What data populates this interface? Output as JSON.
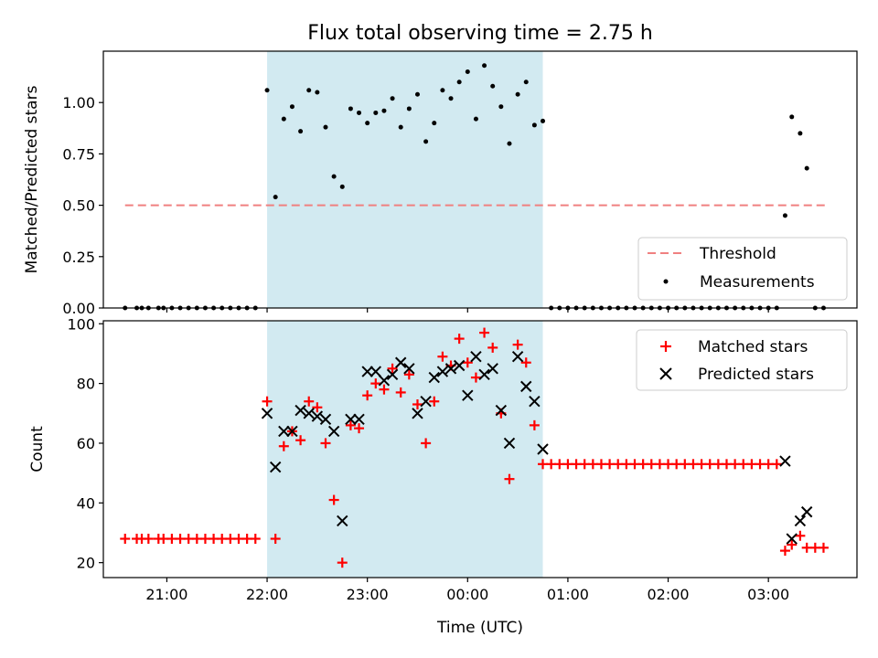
{
  "chart_data": [
    {
      "type": "scatter",
      "title": "Flux total observing time = 2.75 h",
      "xlabel": "",
      "ylabel": "Matched/Predicted stars",
      "xlim": [
        "20:22",
        "03:53"
      ],
      "ylim": [
        0,
        1.25
      ],
      "yticks": [
        "0.00",
        "0.25",
        "0.50",
        "0.75",
        "1.00"
      ],
      "shaded_interval": [
        "22:00",
        "00:45"
      ],
      "legend_position": "lower-right",
      "threshold": {
        "name": "Threshold",
        "value": 0.5,
        "x_start": "20:35",
        "x_end": "03:35",
        "color": "#f08080"
      },
      "series": [
        {
          "name": "Measurements",
          "color": "#000000",
          "points": [
            [
              "20:35",
              0
            ],
            [
              "20:42",
              0
            ],
            [
              "20:45",
              0
            ],
            [
              "20:49",
              0
            ],
            [
              "20:55",
              0
            ],
            [
              "20:58",
              0
            ],
            [
              "21:03",
              0
            ],
            [
              "21:08",
              0
            ],
            [
              "21:13",
              0
            ],
            [
              "21:18",
              0
            ],
            [
              "21:23",
              0
            ],
            [
              "21:28",
              0
            ],
            [
              "21:33",
              0
            ],
            [
              "21:38",
              0
            ],
            [
              "21:43",
              0
            ],
            [
              "21:48",
              0
            ],
            [
              "21:53",
              0
            ],
            [
              "22:00",
              1.06
            ],
            [
              "22:05",
              0.54
            ],
            [
              "22:10",
              0.92
            ],
            [
              "22:15",
              0.98
            ],
            [
              "22:20",
              0.86
            ],
            [
              "22:25",
              1.06
            ],
            [
              "22:30",
              1.05
            ],
            [
              "22:35",
              0.88
            ],
            [
              "22:40",
              0.64
            ],
            [
              "22:45",
              0.59
            ],
            [
              "22:50",
              0.97
            ],
            [
              "22:55",
              0.95
            ],
            [
              "23:00",
              0.9
            ],
            [
              "23:05",
              0.95
            ],
            [
              "23:10",
              0.96
            ],
            [
              "23:15",
              1.02
            ],
            [
              "23:20",
              0.88
            ],
            [
              "23:25",
              0.97
            ],
            [
              "23:30",
              1.04
            ],
            [
              "23:35",
              0.81
            ],
            [
              "23:40",
              0.9
            ],
            [
              "23:45",
              1.06
            ],
            [
              "23:50",
              1.02
            ],
            [
              "23:55",
              1.1
            ],
            [
              "00:00",
              1.15
            ],
            [
              "00:05",
              0.92
            ],
            [
              "00:10",
              1.18
            ],
            [
              "00:15",
              1.08
            ],
            [
              "00:20",
              0.98
            ],
            [
              "00:25",
              0.8
            ],
            [
              "00:30",
              1.04
            ],
            [
              "00:35",
              1.1
            ],
            [
              "00:40",
              0.89
            ],
            [
              "00:45",
              0.91
            ],
            [
              "00:50",
              0
            ],
            [
              "00:55",
              0
            ],
            [
              "01:00",
              0
            ],
            [
              "01:05",
              0
            ],
            [
              "01:10",
              0
            ],
            [
              "01:15",
              0
            ],
            [
              "01:20",
              0
            ],
            [
              "01:25",
              0
            ],
            [
              "01:30",
              0
            ],
            [
              "01:35",
              0
            ],
            [
              "01:40",
              0
            ],
            [
              "01:45",
              0
            ],
            [
              "01:50",
              0
            ],
            [
              "01:55",
              0
            ],
            [
              "02:00",
              0
            ],
            [
              "02:05",
              0
            ],
            [
              "02:10",
              0
            ],
            [
              "02:15",
              0
            ],
            [
              "02:20",
              0
            ],
            [
              "02:25",
              0
            ],
            [
              "02:30",
              0
            ],
            [
              "02:35",
              0
            ],
            [
              "02:40",
              0
            ],
            [
              "02:45",
              0
            ],
            [
              "02:50",
              0
            ],
            [
              "02:55",
              0
            ],
            [
              "03:00",
              0
            ],
            [
              "03:05",
              0
            ],
            [
              "03:10",
              0.45
            ],
            [
              "03:14",
              0.93
            ],
            [
              "03:19",
              0.85
            ],
            [
              "03:23",
              0.68
            ],
            [
              "03:28",
              0
            ],
            [
              "03:33",
              0
            ]
          ]
        }
      ]
    },
    {
      "type": "scatter",
      "title": "",
      "xlabel": "Time (UTC)",
      "ylabel": "Count",
      "xlim": [
        "20:22",
        "03:53"
      ],
      "ylim": [
        15,
        101
      ],
      "yticks": [
        20,
        40,
        60,
        80,
        100
      ],
      "xticks": [
        "21:00",
        "22:00",
        "23:00",
        "00:00",
        "01:00",
        "02:00",
        "03:00"
      ],
      "shaded_interval": [
        "22:00",
        "00:45"
      ],
      "legend_position": "upper-right",
      "series": [
        {
          "name": "Matched stars",
          "marker": "plus",
          "color": "#ff0000",
          "points": [
            [
              "20:35",
              28
            ],
            [
              "20:42",
              28
            ],
            [
              "20:45",
              28
            ],
            [
              "20:49",
              28
            ],
            [
              "20:55",
              28
            ],
            [
              "20:58",
              28
            ],
            [
              "21:03",
              28
            ],
            [
              "21:08",
              28
            ],
            [
              "21:13",
              28
            ],
            [
              "21:18",
              28
            ],
            [
              "21:23",
              28
            ],
            [
              "21:28",
              28
            ],
            [
              "21:33",
              28
            ],
            [
              "21:38",
              28
            ],
            [
              "21:43",
              28
            ],
            [
              "21:48",
              28
            ],
            [
              "21:53",
              28
            ],
            [
              "22:00",
              74
            ],
            [
              "22:05",
              28
            ],
            [
              "22:10",
              59
            ],
            [
              "22:15",
              64
            ],
            [
              "22:20",
              61
            ],
            [
              "22:25",
              74
            ],
            [
              "22:30",
              72
            ],
            [
              "22:35",
              60
            ],
            [
              "22:40",
              41
            ],
            [
              "22:45",
              20
            ],
            [
              "22:50",
              66
            ],
            [
              "22:55",
              65
            ],
            [
              "23:00",
              76
            ],
            [
              "23:05",
              80
            ],
            [
              "23:10",
              78
            ],
            [
              "23:15",
              85
            ],
            [
              "23:20",
              77
            ],
            [
              "23:25",
              83
            ],
            [
              "23:30",
              73
            ],
            [
              "23:35",
              60
            ],
            [
              "23:40",
              74
            ],
            [
              "23:45",
              89
            ],
            [
              "23:50",
              86
            ],
            [
              "23:55",
              95
            ],
            [
              "00:00",
              87
            ],
            [
              "00:05",
              82
            ],
            [
              "00:10",
              97
            ],
            [
              "00:15",
              92
            ],
            [
              "00:20",
              70
            ],
            [
              "00:25",
              48
            ],
            [
              "00:30",
              93
            ],
            [
              "00:35",
              87
            ],
            [
              "00:40",
              66
            ],
            [
              "00:45",
              53
            ],
            [
              "00:50",
              53
            ],
            [
              "00:55",
              53
            ],
            [
              "01:00",
              53
            ],
            [
              "01:05",
              53
            ],
            [
              "01:10",
              53
            ],
            [
              "01:15",
              53
            ],
            [
              "01:20",
              53
            ],
            [
              "01:25",
              53
            ],
            [
              "01:30",
              53
            ],
            [
              "01:35",
              53
            ],
            [
              "01:40",
              53
            ],
            [
              "01:45",
              53
            ],
            [
              "01:50",
              53
            ],
            [
              "01:55",
              53
            ],
            [
              "02:00",
              53
            ],
            [
              "02:05",
              53
            ],
            [
              "02:10",
              53
            ],
            [
              "02:15",
              53
            ],
            [
              "02:20",
              53
            ],
            [
              "02:25",
              53
            ],
            [
              "02:30",
              53
            ],
            [
              "02:35",
              53
            ],
            [
              "02:40",
              53
            ],
            [
              "02:45",
              53
            ],
            [
              "02:50",
              53
            ],
            [
              "02:55",
              53
            ],
            [
              "03:00",
              53
            ],
            [
              "03:05",
              53
            ],
            [
              "03:10",
              24
            ],
            [
              "03:14",
              26
            ],
            [
              "03:19",
              29
            ],
            [
              "03:23",
              25
            ],
            [
              "03:28",
              25
            ],
            [
              "03:33",
              25
            ]
          ]
        },
        {
          "name": "Predicted stars",
          "marker": "x",
          "color": "#000000",
          "points": [
            [
              "22:00",
              70
            ],
            [
              "22:05",
              52
            ],
            [
              "22:10",
              64
            ],
            [
              "22:15",
              64
            ],
            [
              "22:20",
              71
            ],
            [
              "22:25",
              70
            ],
            [
              "22:30",
              69
            ],
            [
              "22:35",
              68
            ],
            [
              "22:40",
              64
            ],
            [
              "22:45",
              34
            ],
            [
              "22:50",
              68
            ],
            [
              "22:55",
              68
            ],
            [
              "23:00",
              84
            ],
            [
              "23:05",
              84
            ],
            [
              "23:10",
              81
            ],
            [
              "23:15",
              83
            ],
            [
              "23:20",
              87
            ],
            [
              "23:25",
              85
            ],
            [
              "23:30",
              70
            ],
            [
              "23:35",
              74
            ],
            [
              "23:40",
              82
            ],
            [
              "23:45",
              84
            ],
            [
              "23:50",
              85
            ],
            [
              "23:55",
              86
            ],
            [
              "00:00",
              76
            ],
            [
              "00:05",
              89
            ],
            [
              "00:10",
              83
            ],
            [
              "00:15",
              85
            ],
            [
              "00:20",
              71
            ],
            [
              "00:25",
              60
            ],
            [
              "00:30",
              89
            ],
            [
              "00:35",
              79
            ],
            [
              "00:40",
              74
            ],
            [
              "00:45",
              58
            ],
            [
              "03:10",
              54
            ],
            [
              "03:14",
              28
            ],
            [
              "03:19",
              34
            ],
            [
              "03:23",
              37
            ]
          ]
        }
      ]
    }
  ]
}
